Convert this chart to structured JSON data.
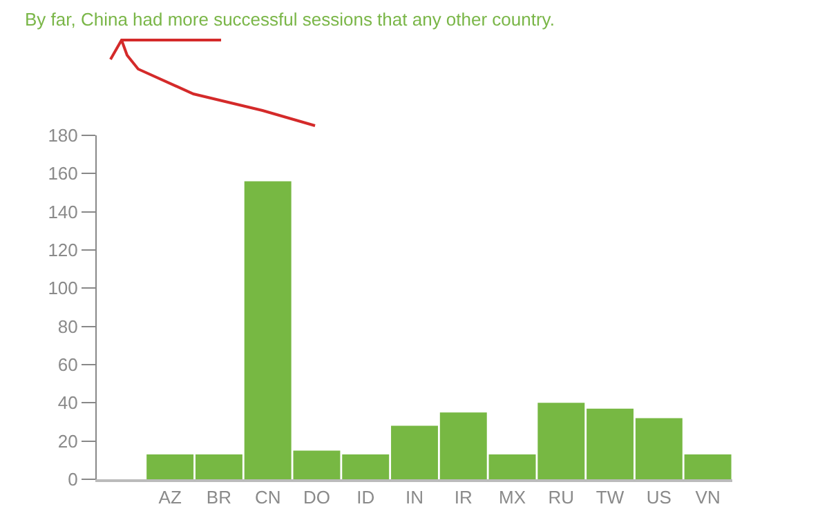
{
  "chart_data": {
    "type": "bar",
    "title": "By far, China had more successful sessions that any other country.",
    "categories": [
      null,
      "AZ",
      "BR",
      "CN",
      "DO",
      "ID",
      "IN",
      "IR",
      "MX",
      "RU",
      "TW",
      "US",
      "VN"
    ],
    "values": [
      null,
      13,
      13,
      156,
      15,
      13,
      28,
      35,
      13,
      40,
      37,
      32,
      13
    ],
    "color": "#77b843",
    "ylim": [
      0,
      180
    ],
    "yticks": [
      0,
      20,
      40,
      60,
      80,
      100,
      120,
      140,
      160,
      180
    ]
  }
}
